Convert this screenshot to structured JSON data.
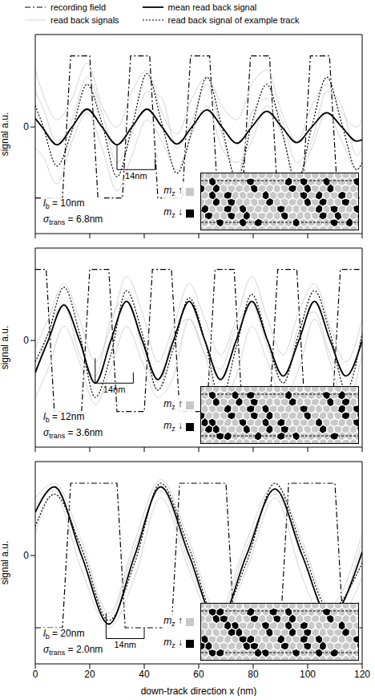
{
  "chart_data": [
    {
      "type": "line",
      "legend": "top",
      "y_label": "signal a.u.",
      "tick_labels": "y",
      "xlim": [
        0,
        120
      ],
      "xticks": [
        0,
        20,
        40,
        60,
        80,
        100,
        120
      ],
      "ylim": [
        -1.5,
        1.3
      ],
      "yticks": [
        0
      ],
      "series": [
        {
          "name": "recording field",
          "color": "#000000",
          "line_style": "dashdot",
          "x": [
            0,
            10,
            13,
            20,
            23,
            32,
            35,
            42,
            45,
            54,
            57,
            64,
            67,
            76,
            79,
            86,
            89,
            98,
            101,
            108,
            111,
            120
          ],
          "values": [
            -1,
            -1,
            1,
            1,
            -1,
            -1,
            1,
            1,
            -1,
            -1,
            1,
            1,
            -1,
            -1,
            1,
            1,
            -1,
            -1,
            1,
            1,
            -1,
            -1
          ]
        },
        {
          "name": "read back signals",
          "color": "#c8c8c8",
          "line_style": "solid",
          "x": [
            0,
            2.5,
            8,
            13.5,
            19,
            24.5,
            30,
            35.5,
            41,
            46.5,
            52,
            57.5,
            63,
            68.5,
            74,
            79.5,
            85,
            90.5,
            96,
            101.5,
            107,
            112.5,
            118,
            120
          ],
          "values": [
            0.5,
            0.3,
            -0.2,
            0.1,
            0.7,
            0.2,
            -0.5,
            -0.1,
            0.5,
            0.4,
            -0.3,
            0.1,
            0.6,
            -0.1,
            -0.7,
            0.2,
            0.4,
            0.1,
            -0.5,
            -0.2,
            0.5,
            0.3,
            -0.4,
            -0.3
          ]
        },
        {
          "name": "read back signals",
          "color": "#c8c8c8",
          "line_style": "solid",
          "x": [
            0,
            2.5,
            8,
            13.5,
            19,
            24.5,
            30,
            35.5,
            41,
            46.5,
            52,
            57.5,
            63,
            68.5,
            74,
            79.5,
            85,
            90.5,
            96,
            101.5,
            107,
            112.5,
            118,
            120
          ],
          "values": [
            -0.3,
            -0.4,
            -0.8,
            -0.2,
            0.2,
            -0.3,
            -0.9,
            -0.4,
            0.1,
            -0.2,
            -0.6,
            -0.1,
            0.3,
            -0.3,
            -0.5,
            -0.2,
            0.3,
            -0.1,
            -0.7,
            -0.3,
            0.2,
            -0.2,
            -0.6,
            -0.5
          ]
        },
        {
          "name": "read back signals",
          "color": "#c8c8c8",
          "line_style": "solid",
          "x": [
            0,
            2.5,
            8,
            13.5,
            19,
            24.5,
            30,
            35.5,
            41,
            46.5,
            52,
            57.5,
            63,
            68.5,
            74,
            79.5,
            85,
            90.5,
            96,
            101.5,
            107,
            112.5,
            118,
            120
          ],
          "values": [
            0.8,
            0.5,
            0.1,
            0.4,
            0.9,
            0.3,
            0,
            0.5,
            0.8,
            0.2,
            -0.1,
            0.4,
            0.7,
            0.3,
            0.1,
            0.6,
            0.8,
            0.2,
            -0.2,
            0.3,
            0.6,
            0.2,
            0,
            0.1
          ]
        },
        {
          "name": "mean read back signal",
          "color": "#000000",
          "line_style": "solid",
          "x": [
            0,
            2.5,
            8,
            13.5,
            19,
            24.5,
            30,
            35.5,
            41,
            46.5,
            52,
            57.5,
            63,
            68.5,
            74,
            79.5,
            85,
            90.5,
            96,
            101.5,
            107,
            112.5,
            118,
            120
          ],
          "values": [
            0.12,
            0,
            -0.25,
            0,
            0.25,
            0,
            -0.25,
            0,
            0.25,
            0,
            -0.24,
            0,
            0.24,
            0,
            -0.23,
            0,
            0.22,
            0,
            -0.22,
            0,
            0.2,
            0,
            -0.2,
            -0.18
          ]
        },
        {
          "name": "read back signal of example track",
          "color": "#000000",
          "line_style": "dotted",
          "x": [
            0,
            2.5,
            8,
            13.5,
            19,
            24.5,
            30,
            35.5,
            41,
            46.5,
            52,
            57.5,
            63,
            68.5,
            74,
            79.5,
            85,
            90.5,
            96,
            101.5,
            107,
            112.5,
            118,
            120
          ],
          "values": [
            0.3,
            0.05,
            -0.55,
            -0.05,
            0.6,
            0.05,
            -0.7,
            0,
            0.75,
            0.05,
            -0.65,
            -0.05,
            0.7,
            0,
            -0.75,
            0.05,
            0.6,
            -0.05,
            -0.8,
            0,
            0.7,
            0.05,
            -0.6,
            -0.5
          ]
        }
      ],
      "annotations": [
        {
          "symbol": "l",
          "sub": "b",
          "text": "= 10nm"
        },
        {
          "symbol": "σ",
          "sub": "trans",
          "text": "= 6.8nm"
        }
      ],
      "bracket": {
        "text": "14nm",
        "x": [
          30,
          44
        ],
        "y": -0.6
      },
      "inset_labels": [
        {
          "symbol": "m",
          "sub": "z",
          "text": "↑",
          "color": "#c8c8c8"
        },
        {
          "symbol": "m",
          "sub": "z",
          "text": "↓",
          "color": "#000000"
        }
      ]
    },
    {
      "type": "line",
      "y_label": "signal a.u.",
      "tick_labels": "y",
      "xlim": [
        0,
        120
      ],
      "xticks": [
        0,
        20,
        40,
        60,
        80,
        100,
        120
      ],
      "ylim": [
        -1.5,
        1.3
      ],
      "yticks": [
        0
      ],
      "series": [
        {
          "name": "recording field",
          "color": "#000000",
          "line_style": "dashdot",
          "x": [
            0,
            4,
            7,
            17,
            20,
            27,
            30,
            40,
            43,
            50,
            53,
            63,
            66,
            73,
            76,
            86,
            89,
            96,
            99,
            109,
            112,
            120
          ],
          "values": [
            1,
            1,
            -1,
            -1,
            1,
            1,
            -1,
            -1,
            1,
            1,
            -1,
            -1,
            1,
            1,
            -1,
            -1,
            1,
            1,
            -1,
            -1,
            1,
            1
          ]
        },
        {
          "name": "read back signals",
          "color": "#c8c8c8",
          "line_style": "solid",
          "x": [
            0,
            4.75,
            10.5,
            16.25,
            22,
            27.75,
            33.5,
            39.25,
            45,
            50.75,
            56.5,
            62.25,
            68,
            73.75,
            79.5,
            85.25,
            91,
            96.75,
            102.5,
            108.25,
            114,
            120
          ],
          "values": [
            -0.1,
            0.3,
            0.8,
            0.3,
            -0.3,
            0.2,
            0.9,
            0.4,
            -0.3,
            0.2,
            0.8,
            0.3,
            -0.2,
            0.3,
            0.9,
            0.3,
            -0.2,
            0.4,
            0.8,
            0.2,
            -0.3,
            0.3
          ]
        },
        {
          "name": "read back signals",
          "color": "#c8c8c8",
          "line_style": "solid",
          "x": [
            0,
            4.75,
            10.5,
            16.25,
            22,
            27.75,
            33.5,
            39.25,
            45,
            50.75,
            56.5,
            62.25,
            68,
            73.75,
            79.5,
            85.25,
            91,
            96.75,
            102.5,
            108.25,
            114,
            120
          ],
          "values": [
            -0.8,
            -0.4,
            0.2,
            -0.3,
            -0.9,
            -0.4,
            0.2,
            -0.3,
            -0.8,
            -0.5,
            0.3,
            -0.2,
            -0.9,
            -0.5,
            0.2,
            -0.3,
            -0.8,
            -0.4,
            0.3,
            -0.3,
            -0.9,
            -0.2
          ]
        },
        {
          "name": "read back signals",
          "color": "#c8c8c8",
          "line_style": "solid",
          "x": [
            0,
            4.75,
            10.5,
            16.25,
            22,
            27.75,
            33.5,
            39.25,
            45,
            50.75,
            56.5,
            62.25,
            68,
            73.75,
            79.5,
            85.25,
            91,
            96.75,
            102.5,
            108.25,
            114,
            120
          ],
          "values": [
            -0.5,
            0.1,
            0.5,
            -0.2,
            -0.5,
            0.3,
            0.6,
            -0.1,
            -0.7,
            0.1,
            0.3,
            -0.2,
            -0.4,
            0.2,
            0.5,
            -0.1,
            -0.6,
            0.2,
            0.4,
            -0.2,
            -0.5,
            0.1
          ]
        },
        {
          "name": "mean read back signal",
          "color": "#000000",
          "line_style": "solid",
          "x": [
            0,
            4.75,
            10.5,
            16.25,
            22,
            27.75,
            33.5,
            39.25,
            45,
            50.75,
            56.5,
            62.25,
            68,
            73.75,
            79.5,
            85.25,
            91,
            96.75,
            102.5,
            108.25,
            114,
            120
          ],
          "values": [
            -0.45,
            0,
            0.5,
            0,
            -0.6,
            0,
            0.55,
            0,
            -0.55,
            0,
            0.55,
            0,
            -0.55,
            0,
            0.55,
            0,
            -0.5,
            0,
            0.55,
            0,
            -0.5,
            0
          ]
        },
        {
          "name": "read back signal of example track",
          "color": "#000000",
          "line_style": "dotted",
          "x": [
            0,
            4.75,
            10.5,
            16.25,
            22,
            27.75,
            33.5,
            39.25,
            45,
            50.75,
            56.5,
            62.25,
            68,
            73.75,
            79.5,
            85.25,
            91,
            96.75,
            102.5,
            108.25,
            114,
            120
          ],
          "values": [
            -0.3,
            0.1,
            0.75,
            0.1,
            -0.8,
            -0.2,
            0.7,
            0.1,
            -0.7,
            -0.1,
            0.6,
            0,
            -0.85,
            -0.1,
            0.65,
            0,
            -0.6,
            0.1,
            0.7,
            0.1,
            -0.7,
            0.1
          ]
        }
      ],
      "annotations": [
        {
          "symbol": "l",
          "sub": "b",
          "text": "= 12nm"
        },
        {
          "symbol": "σ",
          "sub": "trans",
          "text": "= 3.6nm"
        }
      ],
      "bracket": {
        "text": "14nm",
        "x": [
          22,
          36
        ],
        "y": -0.6
      },
      "inset_labels": [
        {
          "symbol": "m",
          "sub": "z",
          "text": "↑",
          "color": "#c8c8c8"
        },
        {
          "symbol": "m",
          "sub": "z",
          "text": "↓",
          "color": "#000000"
        }
      ]
    },
    {
      "type": "line",
      "y_label": "signal a.u.",
      "x_label": "down-track direction x (nm)",
      "xlim": [
        0,
        120
      ],
      "xticks": [
        0,
        20,
        40,
        60,
        80,
        100,
        120
      ],
      "ylim": [
        -1.5,
        1.3
      ],
      "yticks": [
        0
      ],
      "series": [
        {
          "name": "recording field",
          "color": "#000000",
          "line_style": "dashdot",
          "x": [
            0,
            10,
            13,
            30,
            33,
            50,
            53,
            70,
            73,
            90,
            93,
            110,
            113,
            120
          ],
          "values": [
            -1,
            -1,
            1,
            1,
            -1,
            -1,
            1,
            1,
            -1,
            -1,
            1,
            1,
            -1,
            -1
          ]
        },
        {
          "name": "read back signals",
          "color": "#c8c8c8",
          "line_style": "solid",
          "x": [
            0,
            7,
            17,
            27,
            36.5,
            46,
            56.5,
            67,
            77.5,
            88,
            98,
            108,
            120
          ],
          "values": [
            0.8,
            1,
            0.2,
            -0.8,
            0.2,
            1.05,
            0.2,
            -0.8,
            0.2,
            1,
            0.2,
            -0.7,
            0.3
          ]
        },
        {
          "name": "read back signals",
          "color": "#c8c8c8",
          "line_style": "solid",
          "x": [
            0,
            7,
            17,
            27,
            36.5,
            46,
            56.5,
            67,
            77.5,
            88,
            98,
            108,
            120
          ],
          "values": [
            0.3,
            0.85,
            -0.2,
            -1,
            -0.3,
            0.8,
            -0.2,
            -1,
            -0.2,
            0.8,
            -0.3,
            -1,
            -0.3
          ]
        },
        {
          "name": "read back signals",
          "color": "#c8c8c8",
          "line_style": "solid",
          "x": [
            0,
            7,
            17,
            27,
            36.5,
            46,
            56.5,
            67,
            77.5,
            88,
            98,
            108,
            120
          ],
          "values": [
            0.7,
            0.9,
            0.1,
            -0.85,
            0.1,
            0.9,
            -0.1,
            -0.9,
            0.1,
            0.85,
            0,
            -0.9,
            0.2
          ]
        },
        {
          "name": "mean read back signal",
          "color": "#000000",
          "line_style": "solid",
          "x": [
            0,
            7,
            17,
            27,
            36.5,
            46,
            56.5,
            67,
            77.5,
            88,
            98,
            108,
            120
          ],
          "values": [
            0.6,
            0.95,
            0,
            -0.95,
            0,
            0.95,
            0,
            -0.95,
            0,
            0.92,
            0,
            -0.85,
            0.05
          ]
        },
        {
          "name": "read back signal of example track",
          "color": "#000000",
          "line_style": "dotted",
          "x": [
            0,
            7,
            17,
            27,
            36.5,
            46,
            56.5,
            67,
            77.5,
            88,
            98,
            108,
            120
          ],
          "values": [
            0.4,
            0.85,
            0.1,
            -0.9,
            -0.1,
            1,
            0.1,
            -0.9,
            -0.1,
            1,
            0.1,
            -0.75,
            -0.1
          ]
        }
      ],
      "annotations": [
        {
          "symbol": "l",
          "sub": "b",
          "text": "= 20nm"
        },
        {
          "symbol": "σ",
          "sub": "trans",
          "text": "= 2.0nm"
        }
      ],
      "bracket": {
        "text": "14nm",
        "x": [
          26,
          40
        ],
        "y": -1.15
      },
      "inset_labels": [
        {
          "symbol": "m",
          "sub": "z",
          "text": "↑",
          "color": "#c8c8c8"
        },
        {
          "symbol": "m",
          "sub": "z",
          "text": "↓",
          "color": "#000000"
        }
      ]
    }
  ]
}
